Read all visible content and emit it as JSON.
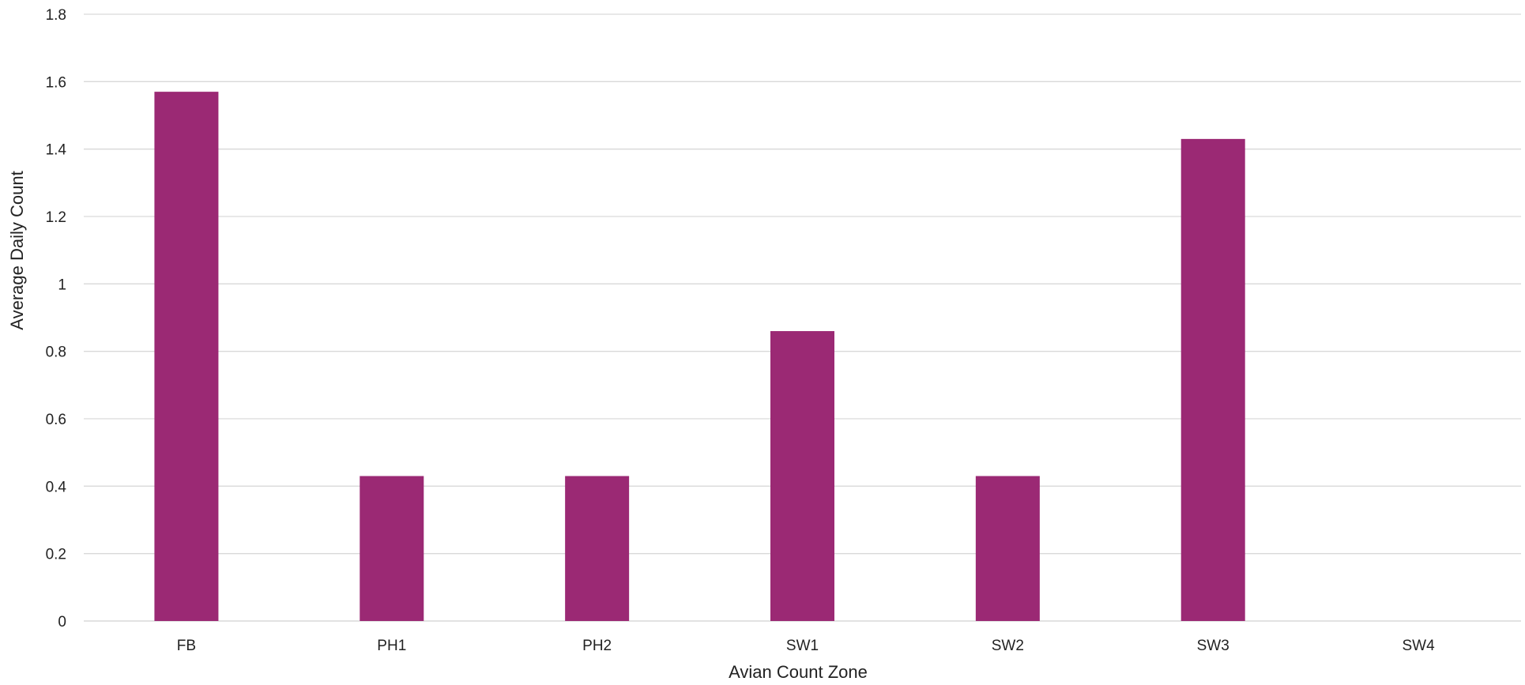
{
  "chart_data": {
    "type": "bar",
    "title": "",
    "xlabel": "Avian Count Zone",
    "ylabel": "Average Daily Count",
    "categories": [
      "FB",
      "PH1",
      "PH2",
      "SW1",
      "SW2",
      "SW3",
      "SW4"
    ],
    "values": [
      1.57,
      0.43,
      0.43,
      0.86,
      0.43,
      1.43,
      0
    ],
    "ylim": [
      0,
      1.8
    ],
    "yticks": [
      "0",
      "0.2",
      "0.4",
      "0.6",
      "0.8",
      "1",
      "1.2",
      "1.4",
      "1.6",
      "1.8"
    ],
    "grid": true,
    "legend": "none",
    "bar_color": "#9b2974",
    "grid_color": "#d9d9d9"
  }
}
